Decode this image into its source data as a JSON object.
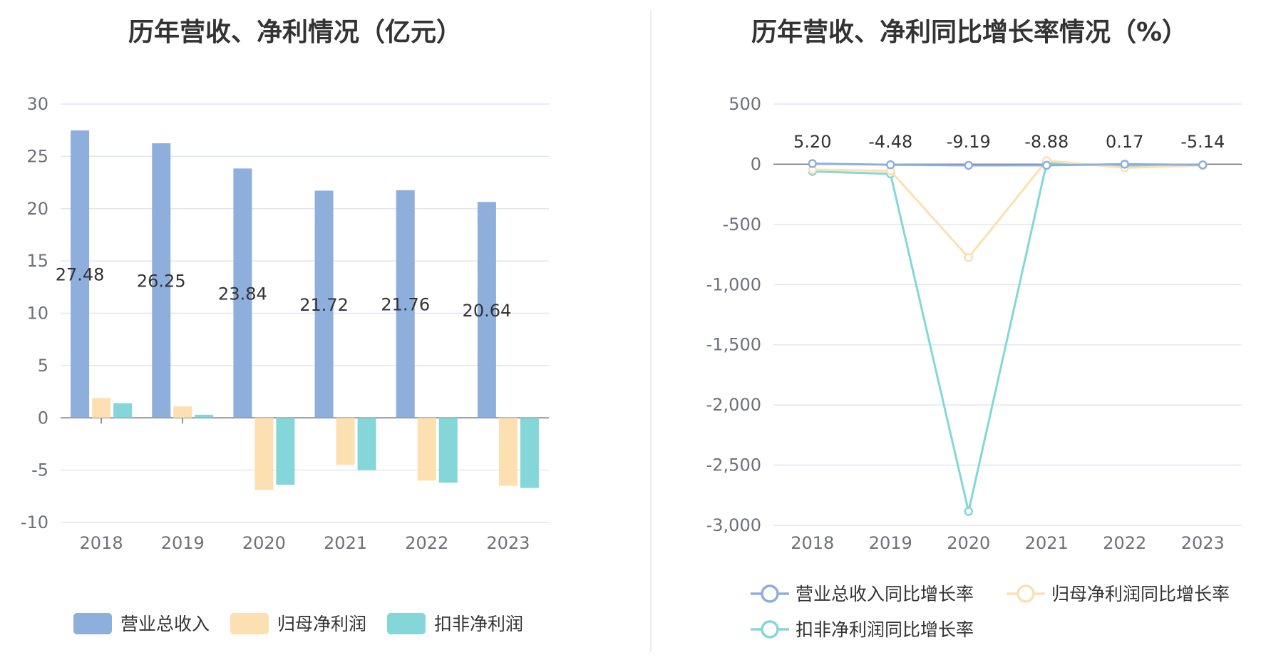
{
  "left_title": "历年营收、净利情况（亿元）",
  "right_title": "历年营收、净利同比增长率情况（%）",
  "chart_data": [
    {
      "type": "bar",
      "title": "历年营收、净利情况（亿元）",
      "categories": [
        "2018",
        "2019",
        "2020",
        "2021",
        "2022",
        "2023"
      ],
      "ylim": [
        -10,
        30
      ],
      "yticks": [
        "30",
        "25",
        "20",
        "15",
        "10",
        "5",
        "0",
        "-5",
        "-10"
      ],
      "grid": true,
      "legend_position": "bottom",
      "series": [
        {
          "name": "营业总收入",
          "color": "#8eaedc",
          "values": [
            27.48,
            26.25,
            23.84,
            21.72,
            21.76,
            20.64
          ],
          "labels": [
            "27.48",
            "26.25",
            "23.84",
            "21.72",
            "21.76",
            "20.64"
          ]
        },
        {
          "name": "归母净利润",
          "color": "#fde0b1",
          "values": [
            1.9,
            1.1,
            -6.9,
            -4.5,
            -6.0,
            -6.5
          ]
        },
        {
          "name": "扣非净利润",
          "color": "#84d6d8",
          "values": [
            1.4,
            0.3,
            -6.4,
            -5.0,
            -6.2,
            -6.7
          ]
        }
      ]
    },
    {
      "type": "line",
      "title": "历年营收、净利同比增长率情况（%）",
      "categories": [
        "2018",
        "2019",
        "2020",
        "2021",
        "2022",
        "2023"
      ],
      "ylim": [
        -3000,
        500
      ],
      "yticks": [
        "500",
        "0",
        "-500",
        "-1,000",
        "-1,500",
        "-2,000",
        "-2,500",
        "-3,000"
      ],
      "grid": true,
      "legend_position": "bottom",
      "series": [
        {
          "name": "营业总收入同比增长率",
          "color": "#8eaedc",
          "values": [
            5.2,
            -4.48,
            -9.19,
            -8.88,
            0.17,
            -5.14
          ],
          "labels": [
            "5.20",
            "-4.48",
            "-9.19",
            "-8.88",
            "0.17",
            "-5.14"
          ]
        },
        {
          "name": "归母净利润同比增长率",
          "color": "#fde0b1",
          "values": [
            -45,
            -55,
            -775,
            30,
            -30,
            -10
          ]
        },
        {
          "name": "扣非净利润同比增长率",
          "color": "#84d6d8",
          "values": [
            -60,
            -80,
            -2885,
            10,
            -15,
            -10
          ]
        }
      ]
    }
  ]
}
